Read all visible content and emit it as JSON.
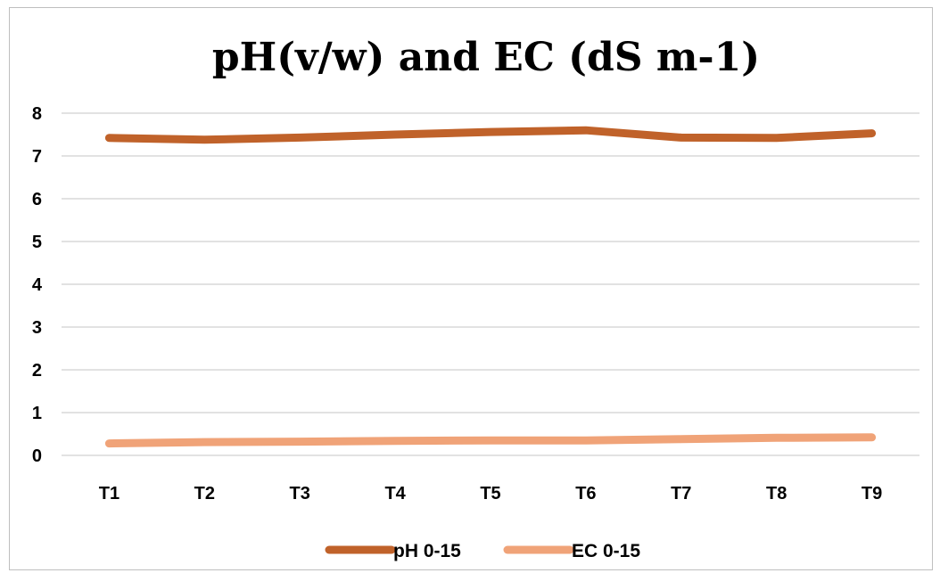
{
  "chart_data": {
    "type": "line",
    "title": "pH(v/w) and EC (dS m-1)",
    "xlabel": "",
    "ylabel": "",
    "categories": [
      "T1",
      "T2",
      "T3",
      "T4",
      "T5",
      "T6",
      "T7",
      "T8",
      "T9"
    ],
    "y_ticks": [
      "0",
      "1",
      "2",
      "3",
      "4",
      "5",
      "6",
      "7",
      "8"
    ],
    "ylim": [
      0,
      8
    ],
    "grid": true,
    "legend_position": "bottom",
    "series": [
      {
        "name": "pH 0-15",
        "color": "#c0622a",
        "values": [
          7.42,
          7.38,
          7.43,
          7.5,
          7.56,
          7.6,
          7.43,
          7.42,
          7.53
        ]
      },
      {
        "name": "EC 0-15",
        "color": "#f0a378",
        "values": [
          0.28,
          0.31,
          0.32,
          0.34,
          0.35,
          0.35,
          0.38,
          0.41,
          0.42
        ]
      }
    ]
  }
}
